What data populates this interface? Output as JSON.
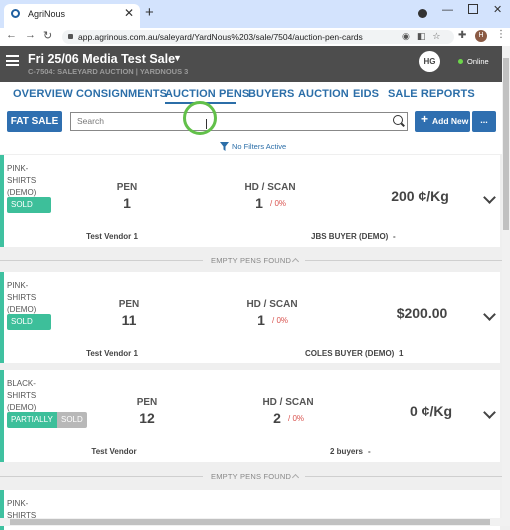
{
  "browser": {
    "tab_title": "AgriNous",
    "url": "app.agrinous.com.au/saleyard/YardNous%203/sale/7504/auction-pen-cards"
  },
  "header": {
    "title": "Fri 25/06 Media Test Sale",
    "subtitle": "C-7504: SALEYARD AUCTION | YARDNOUS 3",
    "avatar": "HG",
    "status": "Online"
  },
  "nav": [
    "OVERVIEW",
    "CONSIGNMENTS",
    "AUCTION PENS",
    "BUYERS",
    "AUCTION",
    "EIDS",
    "SALE REPORTS"
  ],
  "toolbar": {
    "sale_type": "FAT SALE",
    "search_placeholder": "Search",
    "add_new": "Add New",
    "more": "...",
    "filter_status": "No Filters Active"
  },
  "cards": [
    {
      "name_lines": [
        "PINK-",
        "SHIRTS",
        "(DEMO)"
      ],
      "status": [
        "SOLD"
      ],
      "pen_label": "PEN",
      "pen": "1",
      "hd_scan_label": "HD / SCAN",
      "hd": "1",
      "scan": "/ 0%",
      "price": "200 ¢/Kg",
      "vendor": "Test Vendor 1",
      "buyer": "JBS BUYER (DEMO)",
      "buyer_extra": "-"
    },
    {
      "name_lines": [
        "PINK-",
        "SHIRTS",
        "(DEMO)"
      ],
      "status": [
        "SOLD"
      ],
      "pen_label": "PEN",
      "pen": "11",
      "hd_scan_label": "HD / SCAN",
      "hd": "1",
      "scan": "/ 0%",
      "price": "$200.00",
      "vendor": "Test Vendor 1",
      "buyer": "COLES BUYER (DEMO)",
      "buyer_extra": "1"
    },
    {
      "name_lines": [
        "BLACK-",
        "SHIRTS",
        "(DEMO)"
      ],
      "status": [
        "PARTIALLY",
        "SOLD"
      ],
      "pen_label": "PEN",
      "pen": "12",
      "hd_scan_label": "HD / SCAN",
      "hd": "2",
      "scan": "/ 0%",
      "price": "0 ¢/Kg",
      "vendor": "Test Vendor",
      "buyer": "2 buyers",
      "buyer_extra": "-"
    },
    {
      "name_lines": [
        "PINK-",
        "SHIRTS"
      ]
    }
  ],
  "dividers": [
    "EMPTY PENS FOUND",
    "EMPTY PENS FOUND"
  ]
}
